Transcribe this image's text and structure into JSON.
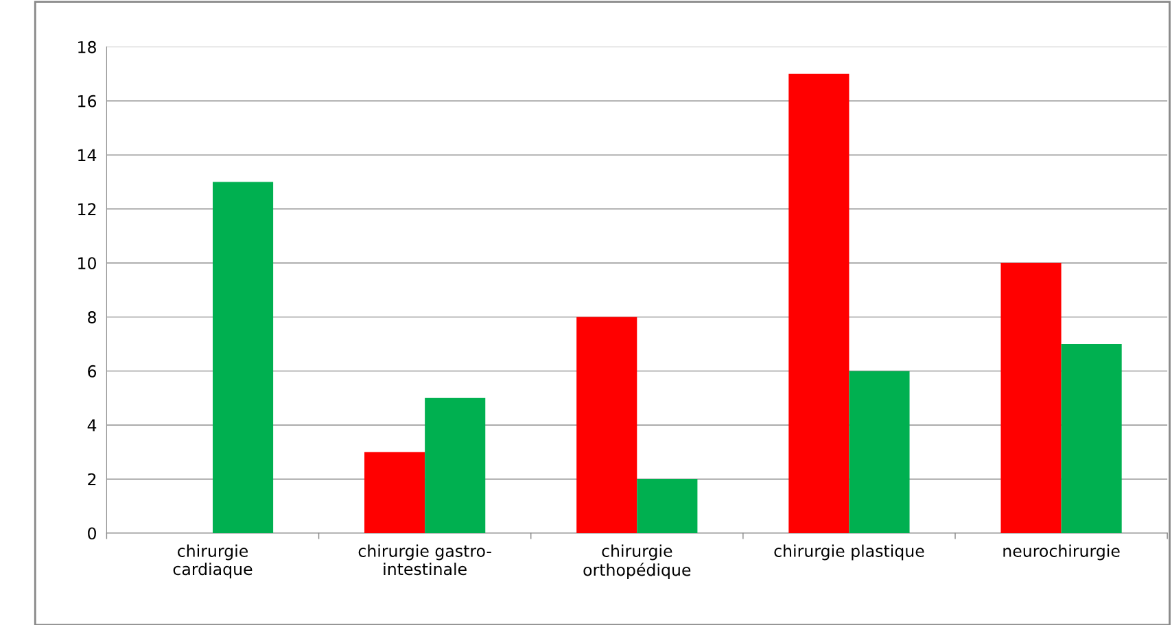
{
  "chart_data": {
    "type": "bar",
    "categories": [
      "chirurgie\ncardiaque",
      "chirurgie gastro-\nintestinale",
      "chirurgie\northopédique",
      "chirurgie plastique",
      "neurochirurgie"
    ],
    "series": [
      {
        "color": "#ff0000",
        "values": [
          0,
          3,
          8,
          17,
          10
        ]
      },
      {
        "color": "#00b050",
        "values": [
          13,
          5,
          2,
          6,
          7
        ]
      }
    ],
    "ylim": [
      0,
      18
    ],
    "yticks": [
      0,
      2,
      4,
      6,
      8,
      10,
      12,
      14,
      16,
      18
    ],
    "grid": "y",
    "legend": false
  }
}
